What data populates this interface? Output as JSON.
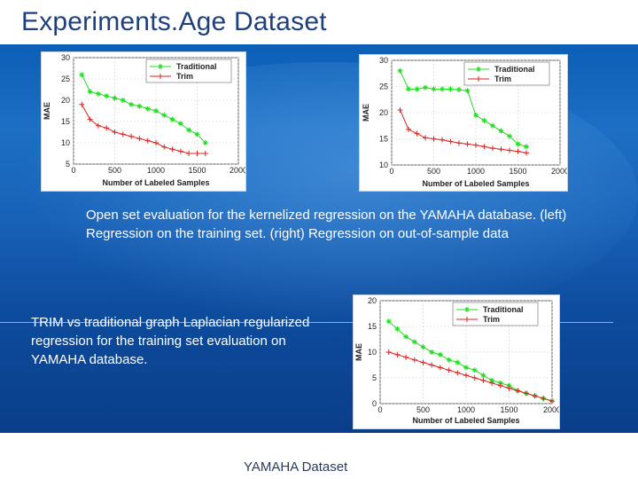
{
  "slide": {
    "title": "Experiments.Age Dataset",
    "caption_top": "Open set evaluation for the kernelized regression on the YAMAHA database. (left) Regression on the training set. (right) Regression on out-of-sample data",
    "caption_bottom": "TRIM vs traditional graph Laplacian regularized regression for the training set evaluation on YAMAHA database.",
    "footer": "YAMAHA Dataset"
  },
  "colors": {
    "traditional": "#22dd22",
    "trim": "#dd2222",
    "band_top": "#0c5fb6",
    "band_bottom": "#0a3e8a"
  },
  "chart_data": [
    {
      "type": "line",
      "title": "",
      "xlabel": "Number of Labeled Samples",
      "ylabel": "MAE",
      "xlim": [
        0,
        2000
      ],
      "ylim": [
        5,
        30
      ],
      "xticks": [
        "0",
        "500",
        "1000",
        "1500",
        "2000"
      ],
      "yticks": [
        "5",
        "10",
        "15",
        "20",
        "25",
        "30"
      ],
      "legend": "top-right",
      "series": [
        {
          "name": "Traditional",
          "x": [
            100,
            200,
            300,
            400,
            500,
            600,
            700,
            800,
            900,
            1000,
            1100,
            1200,
            1300,
            1400,
            1500,
            1600
          ],
          "values": [
            26,
            22,
            21.5,
            21,
            20.5,
            20,
            19,
            18.6,
            18,
            17.5,
            16.5,
            15.5,
            14.5,
            13,
            12,
            10
          ]
        },
        {
          "name": "Trim",
          "x": [
            100,
            200,
            300,
            400,
            500,
            600,
            700,
            800,
            900,
            1000,
            1100,
            1200,
            1300,
            1400,
            1500,
            1600
          ],
          "values": [
            19,
            15.5,
            14,
            13.5,
            12.5,
            12,
            11.5,
            11,
            10.5,
            10,
            9,
            8.5,
            8,
            7.5,
            7.5,
            7.5
          ]
        }
      ]
    },
    {
      "type": "line",
      "title": "",
      "xlabel": "Number of Labeled Samples",
      "ylabel": "MAE",
      "xlim": [
        0,
        2000
      ],
      "ylim": [
        10,
        30
      ],
      "xticks": [
        "0",
        "500",
        "1000",
        "1500",
        "2000"
      ],
      "yticks": [
        "10",
        "15",
        "20",
        "25",
        "30"
      ],
      "legend": "top-right",
      "series": [
        {
          "name": "Traditional",
          "x": [
            100,
            200,
            300,
            400,
            500,
            600,
            700,
            800,
            900,
            1000,
            1100,
            1200,
            1300,
            1400,
            1500,
            1600
          ],
          "values": [
            28,
            24.5,
            24.5,
            24.8,
            24.5,
            24.5,
            24.5,
            24.4,
            24.2,
            19.5,
            18.5,
            17.5,
            16.5,
            15.5,
            14,
            13.5
          ]
        },
        {
          "name": "Trim",
          "x": [
            100,
            200,
            300,
            400,
            500,
            600,
            700,
            800,
            900,
            1000,
            1100,
            1200,
            1300,
            1400,
            1500,
            1600
          ],
          "values": [
            20.5,
            16.8,
            16,
            15.2,
            15,
            14.8,
            14.5,
            14.2,
            14,
            13.8,
            13.5,
            13.2,
            13,
            12.8,
            12.6,
            12.3
          ]
        }
      ]
    },
    {
      "type": "line",
      "title": "",
      "xlabel": "Number of Labeled Samples",
      "ylabel": "MAE",
      "xlim": [
        0,
        2000
      ],
      "ylim": [
        0,
        20
      ],
      "xticks": [
        "0",
        "500",
        "1000",
        "1500",
        "2000"
      ],
      "yticks": [
        "0",
        "5",
        "10",
        "15",
        "20"
      ],
      "legend": "top-right",
      "series": [
        {
          "name": "Traditional",
          "x": [
            100,
            200,
            300,
            400,
            500,
            600,
            700,
            800,
            900,
            1000,
            1100,
            1200,
            1300,
            1400,
            1500,
            1600,
            1700,
            1800,
            1900,
            2000
          ],
          "values": [
            16,
            14.5,
            13,
            12,
            11,
            10,
            9.5,
            8.5,
            8,
            7,
            6.5,
            5.5,
            4.5,
            4,
            3.5,
            2.5,
            2,
            1.5,
            1,
            0.5
          ]
        },
        {
          "name": "Trim",
          "x": [
            100,
            200,
            300,
            400,
            500,
            600,
            700,
            800,
            900,
            1000,
            1100,
            1200,
            1300,
            1400,
            1500,
            1600,
            1700,
            1800,
            1900,
            2000
          ],
          "values": [
            10,
            9.5,
            9,
            8.5,
            8,
            7.5,
            7,
            6.5,
            6,
            5.5,
            5,
            4.5,
            4,
            3.5,
            3,
            2.5,
            2,
            1.5,
            1,
            0.5
          ]
        }
      ]
    }
  ]
}
